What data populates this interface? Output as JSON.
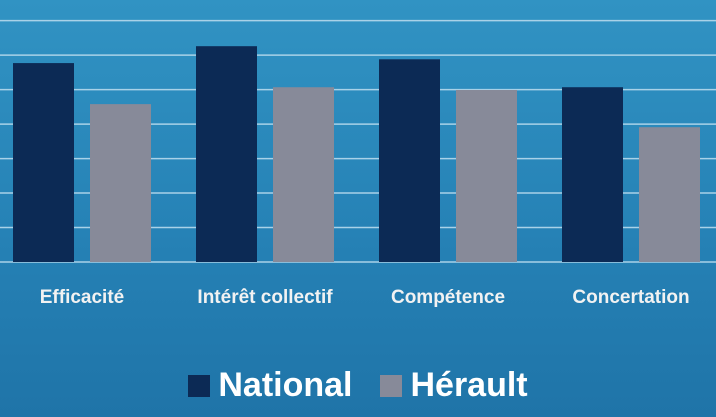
{
  "chart_data": {
    "type": "bar",
    "categories": [
      "Efficacité",
      "Intérêt collectif",
      "Compétence",
      "Concertation"
    ],
    "series": [
      {
        "name": "National",
        "color": "#0c2a55",
        "values": [
          5.77,
          6.26,
          5.88,
          5.07
        ]
      },
      {
        "name": "Hérault",
        "color": "#878a99",
        "values": [
          4.58,
          5.07,
          4.99,
          3.91
        ]
      }
    ],
    "ylim": [
      0,
      7.6
    ],
    "yticks": [
      0,
      1,
      2,
      3,
      4,
      5,
      6,
      7
    ],
    "grid": true
  }
}
